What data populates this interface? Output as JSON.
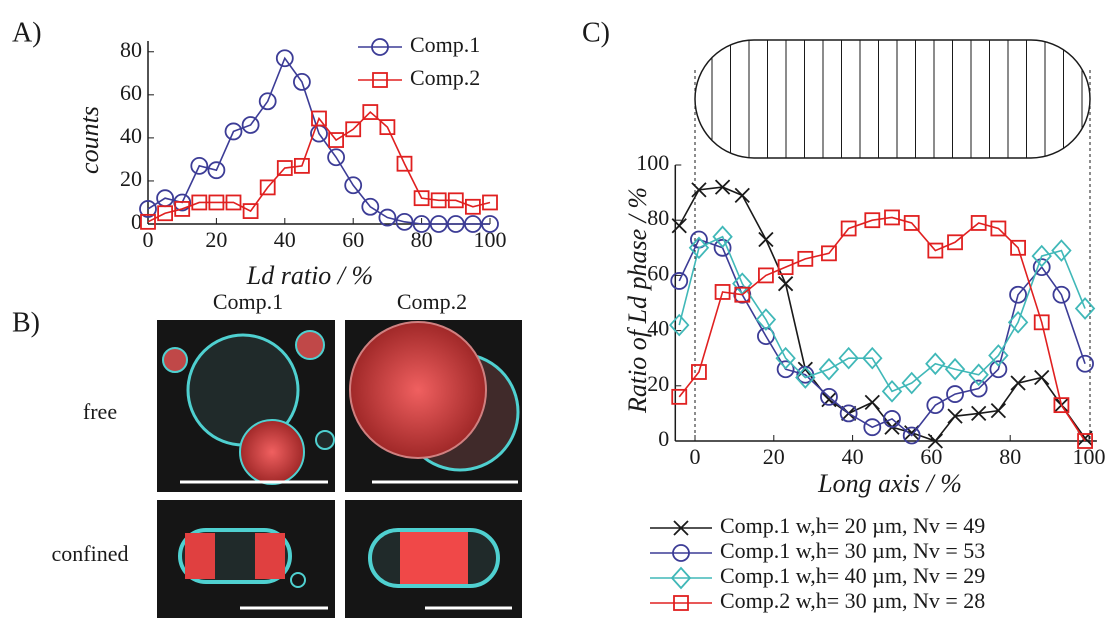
{
  "chart_data": [
    {
      "type": "line",
      "label": "A)",
      "xlabel": "Ld ratio / %",
      "ylabel": "counts",
      "x": [
        0,
        5,
        10,
        15,
        20,
        25,
        30,
        35,
        40,
        45,
        50,
        55,
        60,
        65,
        70,
        75,
        80,
        85,
        90,
        95,
        100
      ],
      "xlim": [
        0,
        100
      ],
      "ylim": [
        0,
        85
      ],
      "xticks": [
        0,
        20,
        40,
        60,
        80,
        100
      ],
      "yticks": [
        0,
        20,
        40,
        60,
        80
      ],
      "legend": "upper right",
      "series": [
        {
          "name": "Comp.1",
          "color": "#3c3c96",
          "marker": "circle",
          "values": [
            7,
            12,
            10,
            27,
            25,
            43,
            46,
            57,
            77,
            66,
            42,
            31,
            18,
            8,
            3,
            1,
            0,
            0,
            0,
            0,
            0
          ]
        },
        {
          "name": "Comp.2",
          "color": "#e02020",
          "marker": "square",
          "values": [
            1,
            5,
            7,
            10,
            10,
            10,
            6,
            17,
            26,
            27,
            49,
            39,
            44,
            52,
            45,
            28,
            12,
            11,
            11,
            8,
            10
          ]
        }
      ]
    },
    {
      "type": "line",
      "label": "C)",
      "xlabel": "Long axis / %",
      "ylabel": "Ratio of Ld phase / %",
      "x": [
        -4,
        1,
        7,
        12,
        18,
        23,
        28,
        34,
        39,
        45,
        50,
        55,
        61,
        66,
        72,
        77,
        82,
        88,
        93,
        99
      ],
      "xlim": [
        -5,
        102
      ],
      "ylim": [
        0,
        100
      ],
      "xticks": [
        0,
        20,
        40,
        60,
        80,
        100
      ],
      "yticks": [
        0,
        20,
        40,
        60,
        80,
        100
      ],
      "legend": "below",
      "series": [
        {
          "name": "Comp.1 w,h= 20 µm, Nv = 49",
          "color": "#1a1a1a",
          "marker": "x",
          "values": [
            78,
            91,
            92,
            89,
            73,
            57,
            26,
            15,
            10,
            14,
            5,
            3,
            0,
            9,
            10,
            11,
            21,
            23,
            13,
            1
          ]
        },
        {
          "name": "Comp.1 w,h= 30 µm, Nv = 53",
          "color": "#3c3c96",
          "marker": "circle",
          "values": [
            58,
            73,
            70,
            53,
            38,
            26,
            24,
            16,
            10,
            5,
            8,
            2,
            13,
            17,
            19,
            26,
            53,
            63,
            53,
            28
          ]
        },
        {
          "name": "Comp.1 w,h= 40 µm, Nv = 29",
          "color": "#40b8b8",
          "marker": "diamond",
          "values": [
            42,
            70,
            74,
            57,
            44,
            30,
            23,
            26,
            30,
            30,
            18,
            21,
            28,
            26,
            24,
            31,
            43,
            67,
            69,
            48
          ]
        },
        {
          "name": "Comp.2 w,h= 30 µm, Nv = 28",
          "color": "#e02020",
          "marker": "square",
          "values": [
            16,
            25,
            54,
            53,
            60,
            63,
            66,
            68,
            77,
            80,
            81,
            79,
            69,
            72,
            79,
            77,
            70,
            43,
            13,
            0
          ]
        }
      ]
    }
  ],
  "images": {
    "label": "B)",
    "columns": [
      "Comp.1",
      "Comp.2"
    ],
    "rows": [
      "free",
      "confined"
    ]
  }
}
